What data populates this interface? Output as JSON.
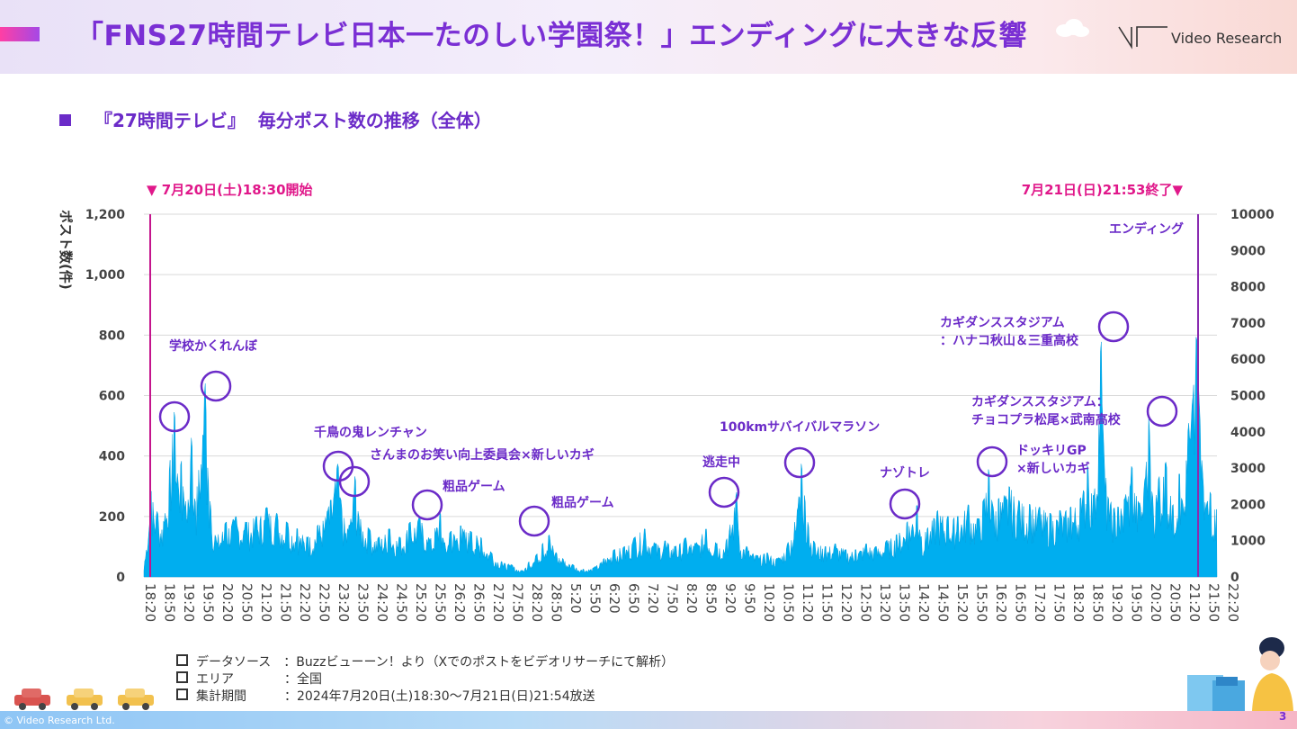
{
  "header": {
    "title": "「FNS27時間テレビ日本一たのしい学園祭！」エンディングに大きな反響",
    "logo_text": "Video Research"
  },
  "section": {
    "title": "『27時間テレビ』  毎分ポスト数の推移（全体）"
  },
  "colors": {
    "accent": "#7a2fd4",
    "magenta": "#e0188a",
    "area_fill": "#00aeef",
    "annotation": "#6b2bc8"
  },
  "chart_data": {
    "type": "area",
    "ylabel": "ポスト数(件)",
    "ylim": [
      0,
      1200
    ],
    "y_ticks": [
      "0",
      "200",
      "400",
      "600",
      "800",
      "1,000",
      "1,200"
    ],
    "y2lim": [
      0,
      10000
    ],
    "y2_ticks": [
      "0",
      "1000",
      "2000",
      "3000",
      "4000",
      "5000",
      "6000",
      "7000",
      "8000",
      "9000",
      "10000"
    ],
    "x_tick_labels": [
      "18:20",
      "18:50",
      "19:20",
      "19:50",
      "20:20",
      "20:50",
      "21:20",
      "21:50",
      "22:20",
      "22:50",
      "23:20",
      "23:50",
      "24:20",
      "24:50",
      "25:20",
      "25:50",
      "26:20",
      "26:50",
      "27:20",
      "27:50",
      "28:20",
      "28:50",
      "5:20",
      "5:50",
      "6:20",
      "6:50",
      "7:20",
      "7:50",
      "8:20",
      "8:50",
      "9:20",
      "9:50",
      "10:20",
      "10:50",
      "11:20",
      "11:50",
      "12:20",
      "12:50",
      "13:20",
      "13:50",
      "14:20",
      "14:50",
      "15:20",
      "15:50",
      "16:20",
      "16:50",
      "17:20",
      "17:50",
      "18:20",
      "18:50",
      "19:20",
      "19:50",
      "20:20",
      "20:50",
      "21:20",
      "21:50",
      "22:20"
    ],
    "grid": true,
    "start_marker": "▼ 7月20日(土)18:30開始",
    "end_marker": "7月21日(日)21:53終了▼",
    "series_peaks_minutes_values": [
      [
        0,
        20
      ],
      [
        10,
        290
      ],
      [
        20,
        210
      ],
      [
        30,
        180
      ],
      [
        45,
        560
      ],
      [
        50,
        300
      ],
      [
        55,
        390
      ],
      [
        60,
        220
      ],
      [
        70,
        470
      ],
      [
        75,
        230
      ],
      [
        90,
        640
      ],
      [
        94,
        330
      ],
      [
        98,
        230
      ],
      [
        105,
        130
      ],
      [
        120,
        180
      ],
      [
        135,
        200
      ],
      [
        150,
        180
      ],
      [
        165,
        200
      ],
      [
        180,
        230
      ],
      [
        195,
        210
      ],
      [
        210,
        180
      ],
      [
        225,
        160
      ],
      [
        240,
        130
      ],
      [
        255,
        170
      ],
      [
        270,
        220
      ],
      [
        285,
        380
      ],
      [
        290,
        230
      ],
      [
        300,
        150
      ],
      [
        310,
        340
      ],
      [
        315,
        200
      ],
      [
        330,
        160
      ],
      [
        345,
        130
      ],
      [
        360,
        160
      ],
      [
        375,
        130
      ],
      [
        390,
        180
      ],
      [
        405,
        200
      ],
      [
        420,
        120
      ],
      [
        435,
        220
      ],
      [
        440,
        110
      ],
      [
        450,
        150
      ],
      [
        465,
        170
      ],
      [
        480,
        150
      ],
      [
        495,
        130
      ],
      [
        510,
        80
      ],
      [
        525,
        50
      ],
      [
        540,
        40
      ],
      [
        555,
        20
      ],
      [
        565,
        50
      ],
      [
        575,
        70
      ],
      [
        585,
        110
      ],
      [
        595,
        140
      ],
      [
        605,
        80
      ],
      [
        615,
        60
      ],
      [
        630,
        40
      ],
      [
        645,
        25
      ],
      [
        660,
        30
      ],
      [
        675,
        60
      ],
      [
        690,
        90
      ],
      [
        705,
        100
      ],
      [
        720,
        130
      ],
      [
        735,
        160
      ],
      [
        750,
        110
      ],
      [
        765,
        120
      ],
      [
        780,
        100
      ],
      [
        795,
        130
      ],
      [
        810,
        110
      ],
      [
        825,
        160
      ],
      [
        840,
        110
      ],
      [
        855,
        120
      ],
      [
        870,
        280
      ],
      [
        873,
        130
      ],
      [
        885,
        100
      ],
      [
        900,
        70
      ],
      [
        915,
        80
      ],
      [
        930,
        60
      ],
      [
        945,
        110
      ],
      [
        960,
        230
      ],
      [
        965,
        380
      ],
      [
        970,
        260
      ],
      [
        975,
        170
      ],
      [
        985,
        110
      ],
      [
        1000,
        100
      ],
      [
        1015,
        110
      ],
      [
        1030,
        90
      ],
      [
        1045,
        90
      ],
      [
        1060,
        110
      ],
      [
        1075,
        100
      ],
      [
        1090,
        120
      ],
      [
        1105,
        140
      ],
      [
        1120,
        180
      ],
      [
        1135,
        240
      ],
      [
        1140,
        130
      ],
      [
        1150,
        160
      ],
      [
        1165,
        220
      ],
      [
        1180,
        200
      ],
      [
        1195,
        200
      ],
      [
        1210,
        240
      ],
      [
        1225,
        190
      ],
      [
        1240,
        360
      ],
      [
        1245,
        240
      ],
      [
        1255,
        260
      ],
      [
        1270,
        300
      ],
      [
        1285,
        250
      ],
      [
        1300,
        240
      ],
      [
        1315,
        230
      ],
      [
        1330,
        210
      ],
      [
        1345,
        220
      ],
      [
        1360,
        230
      ],
      [
        1375,
        260
      ],
      [
        1385,
        370
      ],
      [
        1395,
        260
      ],
      [
        1405,
        800
      ],
      [
        1408,
        460
      ],
      [
        1415,
        260
      ],
      [
        1430,
        230
      ],
      [
        1440,
        260
      ],
      [
        1450,
        370
      ],
      [
        1460,
        240
      ],
      [
        1470,
        330
      ],
      [
        1475,
        540
      ],
      [
        1480,
        260
      ],
      [
        1490,
        330
      ],
      [
        1500,
        380
      ],
      [
        1510,
        230
      ],
      [
        1520,
        350
      ],
      [
        1525,
        230
      ],
      [
        1533,
        500
      ],
      [
        1540,
        600
      ],
      [
        1545,
        820
      ],
      [
        1550,
        520
      ],
      [
        1555,
        300
      ],
      [
        1565,
        280
      ],
      [
        1575,
        220
      ]
    ]
  },
  "annotations": [
    {
      "label": "学校かくれんぼ"
    },
    {
      "label": "千鳥の鬼レンチャン"
    },
    {
      "label": "さんまのお笑い向上委員会×新しいカギ"
    },
    {
      "label": "粗品ゲーム"
    },
    {
      "label": "粗品ゲーム"
    },
    {
      "label": "逃走中"
    },
    {
      "label": "100kmサバイバルマラソン"
    },
    {
      "label": "ナゾトレ"
    },
    {
      "label": "ドッキリGP"
    },
    {
      "label": "×新しいカギ"
    },
    {
      "label": "カギダンススタジアム："
    },
    {
      "label": "チョコプラ松尾×武南高校"
    },
    {
      "label": "カギダンススタジアム"
    },
    {
      "label": "：ハナコ秋山＆三重高校"
    },
    {
      "label": "エンディング"
    }
  ],
  "notes": [
    "データソース　：Buzzビューーン！より（Xでのポストをビデオリサーチにて解析）",
    "エリア　　　　：全国",
    "集計期間　　　：2024年7月20日(土)18:30〜7月21日(日)21:54放送"
  ],
  "footer": {
    "copyright": "© Video Research Ltd.",
    "page": "3"
  }
}
